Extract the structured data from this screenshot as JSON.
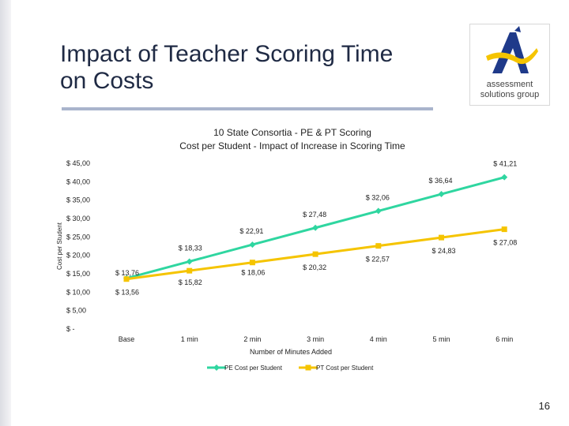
{
  "slide": {
    "title_lines": [
      "Impact of Teacher Scoring Time",
      "on Costs"
    ],
    "page_number": "16",
    "logo": {
      "text_line1": "assessment",
      "text_line2": "solutions group",
      "colors": {
        "navy": "#1f3a8a",
        "yellow": "#f5c400"
      }
    }
  },
  "chart_data": {
    "type": "line",
    "title_lines": [
      "10 State Consortia - PE & PT Scoring",
      "Cost per Student - Impact of Increase in Scoring Time"
    ],
    "xlabel": "Number of Minutes Added",
    "ylabel": "Cost per Student",
    "categories": [
      "Base",
      "1 min",
      "2 min",
      "3 min",
      "4 min",
      "5 min",
      "6 min"
    ],
    "y_ticks": [
      0,
      5,
      10,
      15,
      20,
      25,
      30,
      35,
      40,
      45
    ],
    "y_tick_labels": [
      "$ -",
      "$ 5,00",
      "$ 10,00",
      "$ 15,00",
      "$ 20,00",
      "$ 25,00",
      "$ 30,00",
      "$ 35,00",
      "$ 40,00",
      "$ 45,00"
    ],
    "ylim": [
      0,
      45
    ],
    "grid": false,
    "legend_position": "bottom",
    "series": [
      {
        "name": "PE Cost per Student",
        "color": "#2fd6a0",
        "marker": "diamond",
        "values": [
          13.76,
          18.33,
          22.91,
          27.48,
          32.06,
          36.64,
          41.21
        ],
        "labels": [
          "$ 13,76",
          "$ 18,33",
          "$ 22,91",
          "$ 27,48",
          "$ 32,06",
          "$ 36,64",
          "$ 41,21"
        ]
      },
      {
        "name": "PT Cost per Student",
        "color": "#f5c400",
        "marker": "square",
        "values": [
          13.56,
          15.82,
          18.06,
          20.32,
          22.57,
          24.83,
          27.08
        ],
        "labels": [
          "$ 13,56",
          "$ 15,82",
          "$ 18,06",
          "$ 20,32",
          "$ 22,57",
          "$ 24,83",
          "$ 27,08"
        ]
      }
    ]
  }
}
